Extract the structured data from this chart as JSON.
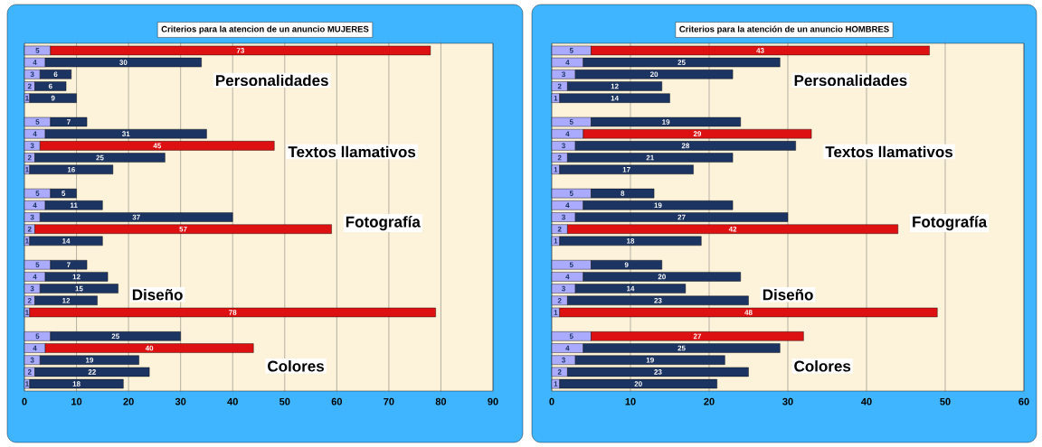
{
  "chart_data": [
    {
      "type": "bar",
      "orientation": "horizontal",
      "stacked": true,
      "title": "Criterios para la atencion de un anuncio MUJERES",
      "categories": [
        null,
        null,
        null,
        null,
        null,
        null,
        null,
        null,
        null,
        null,
        null,
        null,
        null,
        null,
        null,
        null,
        null,
        null,
        null,
        null,
        null,
        null,
        null,
        null,
        null,
        null,
        null,
        null,
        null
      ],
      "series": [
        {
          "color": "#aaaaff",
          "values": [
            5,
            4,
            3,
            2,
            1,
            null,
            5,
            4,
            3,
            2,
            1,
            null,
            5,
            4,
            3,
            2,
            1,
            null,
            5,
            4,
            3,
            2,
            1,
            null,
            5,
            4,
            3,
            2,
            1
          ]
        },
        {
          "colors": [
            "#dd1111",
            "#1c3462",
            "#1c3462",
            "#1c3462",
            "#1c3462",
            null,
            "#1c3462",
            "#1c3462",
            "#dd1111",
            "#1c3462",
            "#1c3462",
            null,
            "#1c3462",
            "#1c3462",
            "#1c3462",
            "#dd1111",
            "#1c3462",
            null,
            "#1c3462",
            "#1c3462",
            "#1c3462",
            "#1c3462",
            "#dd1111",
            null,
            "#1c3462",
            "#dd1111",
            "#1c3462",
            "#1c3462",
            "#1c3462"
          ],
          "values": [
            73,
            30,
            6,
            6,
            9,
            null,
            7,
            31,
            45,
            25,
            16,
            null,
            5,
            11,
            37,
            57,
            14,
            null,
            7,
            12,
            15,
            12,
            78,
            null,
            25,
            40,
            19,
            22,
            18
          ]
        }
      ],
      "data_labels": true,
      "xlim": [
        0,
        90
      ],
      "xticks": [
        0,
        10,
        20,
        30,
        40,
        50,
        60,
        70,
        80,
        90
      ],
      "grid": "x",
      "annotations": [
        "Personalidades",
        "Textos llamativos",
        "Fotografía",
        "Diseño",
        "Colores"
      ]
    },
    {
      "type": "bar",
      "orientation": "horizontal",
      "stacked": true,
      "title": "Criterios para la atención de un anuncio HOMBRES",
      "categories": [
        null,
        null,
        null,
        null,
        null,
        null,
        null,
        null,
        null,
        null,
        null,
        null,
        null,
        null,
        null,
        null,
        null,
        null,
        null,
        null,
        null,
        null,
        null,
        null,
        null,
        null,
        null,
        null,
        null
      ],
      "series": [
        {
          "color": "#aaaaff",
          "values": [
            5,
            4,
            3,
            2,
            1,
            null,
            5,
            4,
            3,
            2,
            1,
            null,
            5,
            4,
            3,
            2,
            1,
            null,
            5,
            4,
            3,
            2,
            1,
            null,
            5,
            4,
            3,
            2,
            1
          ]
        },
        {
          "colors": [
            "#dd1111",
            "#1c3462",
            "#1c3462",
            "#1c3462",
            "#1c3462",
            null,
            "#1c3462",
            "#dd1111",
            "#1c3462",
            "#1c3462",
            "#1c3462",
            null,
            "#1c3462",
            "#1c3462",
            "#1c3462",
            "#dd1111",
            "#1c3462",
            null,
            "#1c3462",
            "#1c3462",
            "#1c3462",
            "#1c3462",
            "#dd1111",
            null,
            "#dd1111",
            "#1c3462",
            "#1c3462",
            "#1c3462",
            "#1c3462"
          ],
          "values": [
            43,
            25,
            20,
            12,
            14,
            null,
            19,
            29,
            28,
            21,
            17,
            null,
            8,
            19,
            27,
            42,
            18,
            null,
            9,
            20,
            14,
            23,
            48,
            null,
            27,
            25,
            19,
            23,
            20
          ]
        }
      ],
      "data_labels": true,
      "xlim": [
        0,
        60
      ],
      "xticks": [
        0,
        10,
        20,
        30,
        40,
        50,
        60
      ],
      "grid": "x",
      "annotations": [
        "Personalidades",
        "Textos llamativos",
        "Fotografía",
        "Diseño",
        "Colores"
      ]
    }
  ]
}
